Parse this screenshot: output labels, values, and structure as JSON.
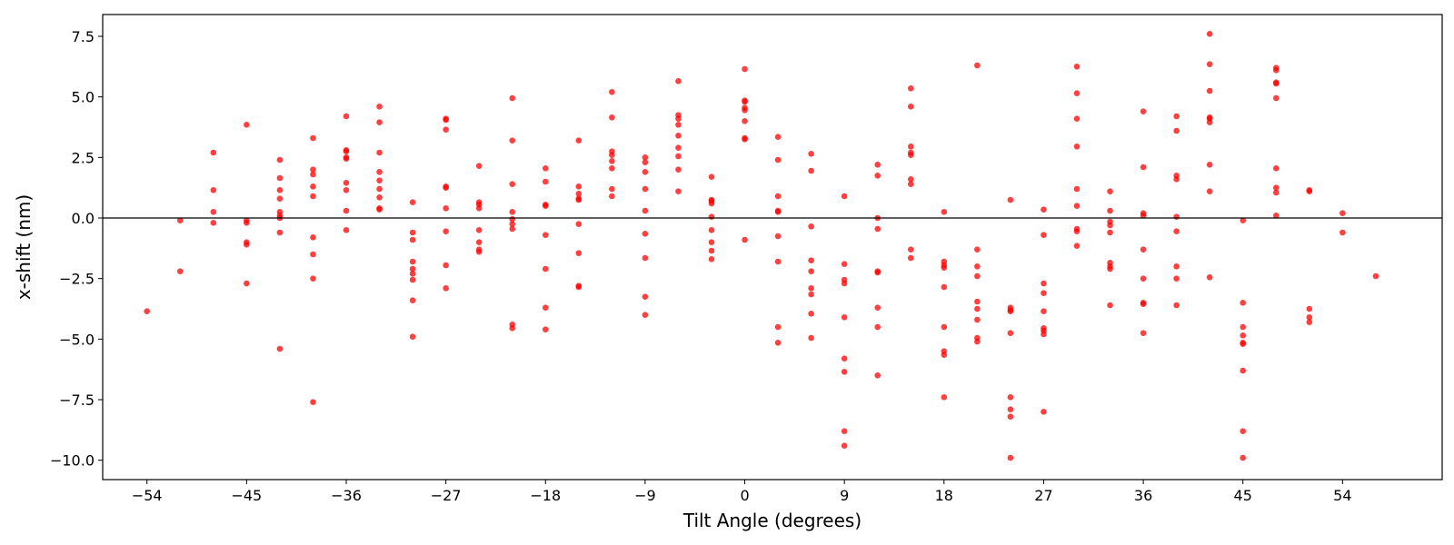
{
  "chart_data": {
    "type": "scatter",
    "title": "",
    "xlabel": "Tilt Angle (degrees)",
    "ylabel": "x-shift (nm)",
    "xlim": [
      -58,
      63
    ],
    "ylim": [
      -10.8,
      8.4
    ],
    "xticks": [
      -54,
      -45,
      -36,
      -27,
      -18,
      -9,
      0,
      9,
      18,
      27,
      36,
      45,
      54
    ],
    "yticks": [
      -10.0,
      -7.5,
      -5.0,
      -2.5,
      0.0,
      2.5,
      5.0,
      7.5
    ],
    "xtick_labels": [
      "−54",
      "−45",
      "−36",
      "−27",
      "−18",
      "−9",
      "0",
      "9",
      "18",
      "27",
      "36",
      "45",
      "54"
    ],
    "ytick_labels": [
      "−10.0",
      "−7.5",
      "−5.0",
      "−2.5",
      "0.0",
      "2.5",
      "5.0",
      "7.5"
    ],
    "reference_line_y": 0,
    "grid": false,
    "marker_color": "#ff0000",
    "series": [
      {
        "points": [
          [
            -54,
            -3.85
          ],
          [
            -51,
            -0.1
          ],
          [
            -51,
            -2.2
          ],
          [
            -48,
            2.7
          ],
          [
            -48,
            1.15
          ],
          [
            -48,
            0.25
          ],
          [
            -48,
            -0.2
          ],
          [
            -45,
            3.85
          ],
          [
            -45,
            -0.1
          ],
          [
            -45,
            -0.2
          ],
          [
            -45,
            -1.0
          ],
          [
            -45,
            -1.1
          ],
          [
            -45,
            -2.7
          ],
          [
            -42,
            2.4
          ],
          [
            -42,
            1.65
          ],
          [
            -42,
            1.15
          ],
          [
            -42,
            0.8
          ],
          [
            -42,
            0.25
          ],
          [
            -42,
            0.1
          ],
          [
            -42,
            0.0
          ],
          [
            -42,
            -0.6
          ],
          [
            -42,
            -5.4
          ],
          [
            -39,
            3.3
          ],
          [
            -39,
            2.0
          ],
          [
            -39,
            1.8
          ],
          [
            -39,
            1.3
          ],
          [
            -39,
            0.9
          ],
          [
            -39,
            -0.8
          ],
          [
            -39,
            -1.5
          ],
          [
            -39,
            -2.5
          ],
          [
            -39,
            -7.6
          ],
          [
            -36,
            4.2
          ],
          [
            -36,
            2.8
          ],
          [
            -36,
            2.75
          ],
          [
            -36,
            2.5
          ],
          [
            -36,
            2.45
          ],
          [
            -36,
            1.45
          ],
          [
            -36,
            1.15
          ],
          [
            -36,
            0.3
          ],
          [
            -36,
            -0.5
          ],
          [
            -33,
            4.6
          ],
          [
            -33,
            3.95
          ],
          [
            -33,
            2.7
          ],
          [
            -33,
            1.9
          ],
          [
            -33,
            1.55
          ],
          [
            -33,
            1.2
          ],
          [
            -33,
            0.85
          ],
          [
            -33,
            0.4
          ],
          [
            -33,
            0.35
          ],
          [
            -30,
            0.65
          ],
          [
            -30,
            -0.6
          ],
          [
            -30,
            -0.9
          ],
          [
            -30,
            -1.8
          ],
          [
            -30,
            -2.1
          ],
          [
            -30,
            -2.3
          ],
          [
            -30,
            -2.55
          ],
          [
            -30,
            -3.4
          ],
          [
            -30,
            -4.9
          ],
          [
            -27,
            4.1
          ],
          [
            -27,
            4.05
          ],
          [
            -27,
            3.65
          ],
          [
            -27,
            1.3
          ],
          [
            -27,
            1.25
          ],
          [
            -27,
            0.4
          ],
          [
            -27,
            -0.55
          ],
          [
            -27,
            -1.95
          ],
          [
            -27,
            -2.9
          ],
          [
            -24,
            2.15
          ],
          [
            -24,
            0.65
          ],
          [
            -24,
            0.55
          ],
          [
            -24,
            0.4
          ],
          [
            -24,
            -0.5
          ],
          [
            -24,
            -1.0
          ],
          [
            -24,
            -1.3
          ],
          [
            -24,
            -1.4
          ],
          [
            -21,
            4.95
          ],
          [
            -21,
            3.2
          ],
          [
            -21,
            1.4
          ],
          [
            -21,
            0.25
          ],
          [
            -21,
            -0.05
          ],
          [
            -21,
            -0.25
          ],
          [
            -21,
            -0.45
          ],
          [
            -21,
            -4.4
          ],
          [
            -21,
            -4.55
          ],
          [
            -18,
            2.05
          ],
          [
            -18,
            1.5
          ],
          [
            -18,
            0.55
          ],
          [
            -18,
            0.5
          ],
          [
            -18,
            -0.7
          ],
          [
            -18,
            -2.1
          ],
          [
            -18,
            -3.7
          ],
          [
            -18,
            -4.6
          ],
          [
            -15,
            3.2
          ],
          [
            -15,
            1.3
          ],
          [
            -15,
            1.0
          ],
          [
            -15,
            0.8
          ],
          [
            -15,
            0.75
          ],
          [
            -15,
            -0.25
          ],
          [
            -15,
            -1.45
          ],
          [
            -15,
            -2.8
          ],
          [
            -15,
            -2.85
          ],
          [
            -12,
            5.2
          ],
          [
            -12,
            4.15
          ],
          [
            -12,
            2.75
          ],
          [
            -12,
            2.6
          ],
          [
            -12,
            2.35
          ],
          [
            -12,
            2.05
          ],
          [
            -12,
            1.2
          ],
          [
            -12,
            0.9
          ],
          [
            -9,
            2.5
          ],
          [
            -9,
            2.3
          ],
          [
            -9,
            1.9
          ],
          [
            -9,
            1.2
          ],
          [
            -9,
            0.3
          ],
          [
            -9,
            -0.65
          ],
          [
            -9,
            -1.65
          ],
          [
            -9,
            -3.25
          ],
          [
            -9,
            -4.0
          ],
          [
            -6,
            5.65
          ],
          [
            -6,
            4.25
          ],
          [
            -6,
            4.1
          ],
          [
            -6,
            3.85
          ],
          [
            -6,
            3.4
          ],
          [
            -6,
            2.9
          ],
          [
            -6,
            2.55
          ],
          [
            -6,
            2.0
          ],
          [
            -6,
            1.1
          ],
          [
            -3,
            1.7
          ],
          [
            -3,
            0.75
          ],
          [
            -3,
            0.7
          ],
          [
            -3,
            0.6
          ],
          [
            -3,
            0.05
          ],
          [
            -3,
            -0.5
          ],
          [
            -3,
            -1.0
          ],
          [
            -3,
            -1.35
          ],
          [
            -3,
            -1.7
          ],
          [
            0,
            6.15
          ],
          [
            0,
            4.85
          ],
          [
            0,
            4.8
          ],
          [
            0,
            4.55
          ],
          [
            0,
            4.45
          ],
          [
            0,
            4.0
          ],
          [
            0,
            3.3
          ],
          [
            0,
            3.25
          ],
          [
            0,
            -0.9
          ],
          [
            3,
            3.35
          ],
          [
            3,
            2.4
          ],
          [
            3,
            0.9
          ],
          [
            3,
            0.3
          ],
          [
            3,
            0.25
          ],
          [
            3,
            -0.75
          ],
          [
            3,
            -1.8
          ],
          [
            3,
            -4.5
          ],
          [
            3,
            -5.15
          ],
          [
            6,
            2.65
          ],
          [
            6,
            1.95
          ],
          [
            6,
            -0.35
          ],
          [
            6,
            -1.75
          ],
          [
            6,
            -2.2
          ],
          [
            6,
            -2.9
          ],
          [
            6,
            -3.15
          ],
          [
            6,
            -3.95
          ],
          [
            6,
            -4.95
          ],
          [
            9,
            0.9
          ],
          [
            9,
            -1.9
          ],
          [
            9,
            -2.55
          ],
          [
            9,
            -2.7
          ],
          [
            9,
            -4.1
          ],
          [
            9,
            -5.8
          ],
          [
            9,
            -6.35
          ],
          [
            9,
            -8.8
          ],
          [
            9,
            -9.4
          ],
          [
            12,
            2.2
          ],
          [
            12,
            1.75
          ],
          [
            12,
            0.0
          ],
          [
            12,
            -0.45
          ],
          [
            12,
            -2.2
          ],
          [
            12,
            -2.25
          ],
          [
            12,
            -3.7
          ],
          [
            12,
            -4.5
          ],
          [
            12,
            -6.5
          ],
          [
            15,
            5.35
          ],
          [
            15,
            4.6
          ],
          [
            15,
            2.95
          ],
          [
            15,
            2.7
          ],
          [
            15,
            2.6
          ],
          [
            15,
            1.6
          ],
          [
            15,
            1.4
          ],
          [
            15,
            -1.3
          ],
          [
            15,
            -1.65
          ],
          [
            18,
            0.25
          ],
          [
            18,
            -1.8
          ],
          [
            18,
            -1.95
          ],
          [
            18,
            -2.05
          ],
          [
            18,
            -2.85
          ],
          [
            18,
            -4.5
          ],
          [
            18,
            -5.5
          ],
          [
            18,
            -5.65
          ],
          [
            18,
            -7.4
          ],
          [
            21,
            6.3
          ],
          [
            21,
            -1.3
          ],
          [
            21,
            -2.0
          ],
          [
            21,
            -2.4
          ],
          [
            21,
            -3.45
          ],
          [
            21,
            -3.75
          ],
          [
            21,
            -4.2
          ],
          [
            21,
            -4.95
          ],
          [
            21,
            -5.1
          ],
          [
            24,
            0.75
          ],
          [
            24,
            -3.7
          ],
          [
            24,
            -3.8
          ],
          [
            24,
            -3.85
          ],
          [
            24,
            -4.75
          ],
          [
            24,
            -7.4
          ],
          [
            24,
            -7.9
          ],
          [
            24,
            -8.2
          ],
          [
            24,
            -9.9
          ],
          [
            27,
            0.35
          ],
          [
            27,
            -0.7
          ],
          [
            27,
            -2.7
          ],
          [
            27,
            -3.1
          ],
          [
            27,
            -3.85
          ],
          [
            27,
            -4.55
          ],
          [
            27,
            -4.65
          ],
          [
            27,
            -4.8
          ],
          [
            27,
            -8.0
          ],
          [
            30,
            6.25
          ],
          [
            30,
            5.15
          ],
          [
            30,
            4.1
          ],
          [
            30,
            2.95
          ],
          [
            30,
            1.2
          ],
          [
            30,
            0.5
          ],
          [
            30,
            -0.45
          ],
          [
            30,
            -0.55
          ],
          [
            30,
            -1.15
          ],
          [
            33,
            1.1
          ],
          [
            33,
            0.3
          ],
          [
            33,
            -0.15
          ],
          [
            33,
            -0.3
          ],
          [
            33,
            -0.6
          ],
          [
            33,
            -1.85
          ],
          [
            33,
            -2.0
          ],
          [
            33,
            -2.1
          ],
          [
            33,
            -3.6
          ],
          [
            36,
            4.4
          ],
          [
            36,
            2.1
          ],
          [
            36,
            0.2
          ],
          [
            36,
            0.1
          ],
          [
            36,
            -1.3
          ],
          [
            36,
            -2.5
          ],
          [
            36,
            -3.5
          ],
          [
            36,
            -3.55
          ],
          [
            36,
            -4.75
          ],
          [
            39,
            4.2
          ],
          [
            39,
            3.6
          ],
          [
            39,
            1.75
          ],
          [
            39,
            1.6
          ],
          [
            39,
            0.05
          ],
          [
            39,
            -0.55
          ],
          [
            39,
            -2.0
          ],
          [
            39,
            -2.5
          ],
          [
            39,
            -3.6
          ],
          [
            42,
            7.6
          ],
          [
            42,
            6.35
          ],
          [
            42,
            5.25
          ],
          [
            42,
            4.15
          ],
          [
            42,
            4.1
          ],
          [
            42,
            3.95
          ],
          [
            42,
            2.2
          ],
          [
            42,
            1.1
          ],
          [
            42,
            -2.45
          ],
          [
            45,
            -0.1
          ],
          [
            45,
            -3.5
          ],
          [
            45,
            -4.5
          ],
          [
            45,
            -4.85
          ],
          [
            45,
            -5.15
          ],
          [
            45,
            -5.2
          ],
          [
            45,
            -6.3
          ],
          [
            45,
            -8.8
          ],
          [
            45,
            -9.9
          ],
          [
            48,
            6.2
          ],
          [
            48,
            6.1
          ],
          [
            48,
            5.6
          ],
          [
            48,
            5.55
          ],
          [
            48,
            4.95
          ],
          [
            48,
            2.05
          ],
          [
            48,
            1.25
          ],
          [
            48,
            1.05
          ],
          [
            48,
            0.1
          ],
          [
            51,
            1.15
          ],
          [
            51,
            1.1
          ],
          [
            51,
            -3.75
          ],
          [
            51,
            -4.1
          ],
          [
            51,
            -4.3
          ],
          [
            54,
            0.2
          ],
          [
            54,
            -0.6
          ],
          [
            57,
            -2.4
          ]
        ]
      }
    ]
  }
}
